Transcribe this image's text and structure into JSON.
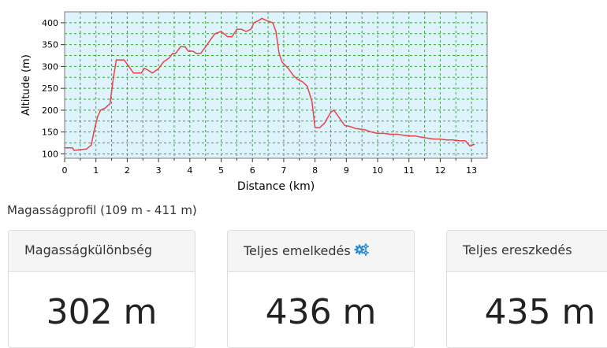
{
  "chart_data": {
    "type": "line",
    "xlabel": "Distance (km)",
    "ylabel": "Altitude (m)",
    "xlim": [
      0,
      13.5
    ],
    "ylim": [
      90,
      425
    ],
    "xticks": [
      0,
      1,
      2,
      3,
      4,
      5,
      6,
      7,
      8,
      9,
      10,
      11,
      12,
      13
    ],
    "yticks": [
      100,
      150,
      200,
      250,
      300,
      350,
      400
    ],
    "grid": true,
    "line_color": "#e8434a",
    "plot_background": "#dff3fc",
    "grid_color": "#3aa83a",
    "series": [
      {
        "x": [
          0,
          0.25,
          0.3,
          0.7,
          0.85,
          0.95,
          1.05,
          1.15,
          1.3,
          1.45,
          1.55,
          1.65,
          1.9,
          2.0,
          2.2,
          2.45,
          2.55,
          2.7,
          2.8,
          3.0,
          3.15,
          3.35,
          3.45,
          3.55,
          3.7,
          3.85,
          3.95,
          4.1,
          4.2,
          4.35,
          4.5,
          4.65,
          4.8,
          5.0,
          5.2,
          5.35,
          5.5,
          5.65,
          5.8,
          5.95,
          6.05,
          6.2,
          6.3,
          6.45,
          6.65,
          6.75,
          6.85,
          6.95,
          7.15,
          7.3,
          7.45,
          7.6,
          7.75,
          7.9,
          8.0,
          8.15,
          8.3,
          8.5,
          8.6,
          8.8,
          8.95,
          9.1,
          9.3,
          9.6,
          9.8,
          10.0,
          10.2,
          10.4,
          10.6,
          10.8,
          11.0,
          11.2,
          11.4,
          11.6,
          11.8,
          12.0,
          12.2,
          12.4,
          12.6,
          12.8,
          12.95,
          13.1
        ],
        "y": [
          114,
          114,
          108,
          111,
          120,
          155,
          185,
          200,
          205,
          215,
          270,
          315,
          315,
          305,
          285,
          285,
          296,
          290,
          285,
          295,
          310,
          320,
          330,
          330,
          345,
          345,
          335,
          335,
          330,
          330,
          345,
          360,
          375,
          380,
          368,
          368,
          385,
          385,
          380,
          385,
          400,
          405,
          410,
          405,
          400,
          380,
          330,
          310,
          295,
          280,
          270,
          265,
          255,
          220,
          160,
          160,
          170,
          195,
          200,
          180,
          165,
          163,
          158,
          155,
          150,
          147,
          147,
          145,
          145,
          143,
          141,
          141,
          138,
          136,
          134,
          134,
          132,
          132,
          130,
          130,
          118,
          122
        ]
      }
    ]
  },
  "profile_caption": "Magasságprofil (109 m - 411 m)",
  "stats": [
    {
      "title": "Magasságkülönbség",
      "value": "302 m"
    },
    {
      "title": "Teljes emelkedés",
      "value": "436 m",
      "icon": "gears-icon"
    },
    {
      "title": "Teljes ereszkedés",
      "value": "435 m"
    }
  ]
}
